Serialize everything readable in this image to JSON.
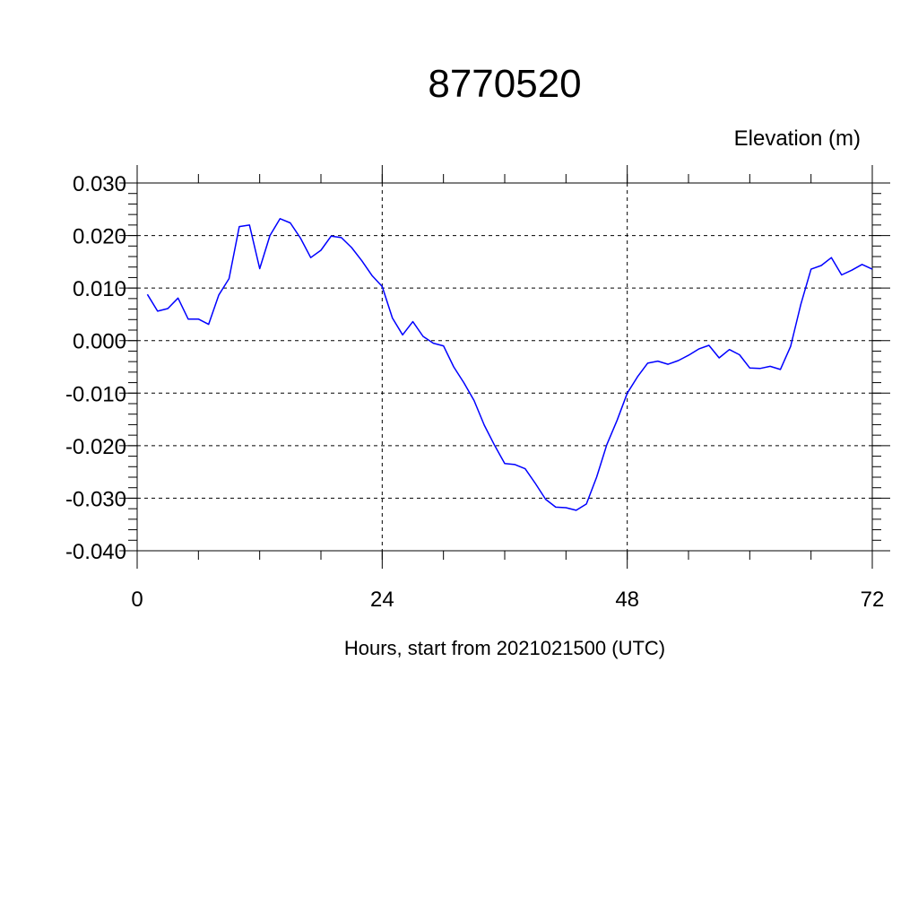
{
  "chart_data": {
    "type": "line",
    "title": "8770520",
    "ylabel": "Elevation (m)",
    "xlabel": "Hours, start from 2021021500 (UTC)",
    "xlim": [
      0,
      72
    ],
    "ylim": [
      -0.04,
      0.03
    ],
    "xticks": [
      0,
      24,
      48,
      72
    ],
    "xtick_labels": [
      "0",
      "24",
      "48",
      "72"
    ],
    "yticks": [
      -0.04,
      -0.03,
      -0.02,
      -0.01,
      0.0,
      0.01,
      0.02,
      0.03
    ],
    "ytick_labels": [
      "-0.040",
      "-0.030",
      "-0.020",
      "-0.010",
      "0.000",
      "0.010",
      "0.020",
      "0.030"
    ],
    "grid": true,
    "line_color": "#0000ff",
    "series": [
      {
        "x": [
          1,
          2,
          3,
          4,
          5,
          6,
          7,
          8,
          9,
          10,
          11,
          12,
          13,
          14,
          15,
          16,
          17,
          18,
          19,
          20,
          21,
          22,
          23,
          24,
          25,
          26,
          27,
          28,
          29,
          30,
          31,
          32,
          33,
          34,
          35,
          36,
          37,
          38,
          39,
          40,
          41,
          42,
          43,
          44,
          45,
          46,
          47,
          48,
          49,
          50,
          51,
          52,
          53,
          54,
          55,
          56,
          57,
          58,
          59,
          60,
          61,
          62,
          63,
          64,
          65,
          66,
          67,
          68,
          69,
          70,
          71,
          72
        ],
        "values": [
          0.0088,
          0.0056,
          0.0061,
          0.0081,
          0.0041,
          0.0041,
          0.0031,
          0.0087,
          0.0118,
          0.0217,
          0.022,
          0.0137,
          0.02,
          0.0232,
          0.0224,
          0.0195,
          0.0158,
          0.0172,
          0.0199,
          0.0196,
          0.0177,
          0.0152,
          0.0124,
          0.0103,
          0.0043,
          0.0011,
          0.0036,
          0.0008,
          -0.0005,
          -0.001,
          -0.005,
          -0.008,
          -0.0114,
          -0.0161,
          -0.0199,
          -0.0234,
          -0.0236,
          -0.0244,
          -0.0272,
          -0.0302,
          -0.0317,
          -0.0318,
          -0.0323,
          -0.0311,
          -0.026,
          -0.0198,
          -0.0152,
          -0.01,
          -0.0069,
          -0.0043,
          -0.0039,
          -0.0045,
          -0.0038,
          -0.0028,
          -0.0016,
          -0.0009,
          -0.0033,
          -0.0017,
          -0.0027,
          -0.0052,
          -0.0053,
          -0.0049,
          -0.0055,
          -0.0011,
          0.0069,
          0.0136,
          0.0143,
          0.0158,
          0.0125,
          0.0134,
          0.0145,
          0.0136
        ]
      }
    ]
  }
}
